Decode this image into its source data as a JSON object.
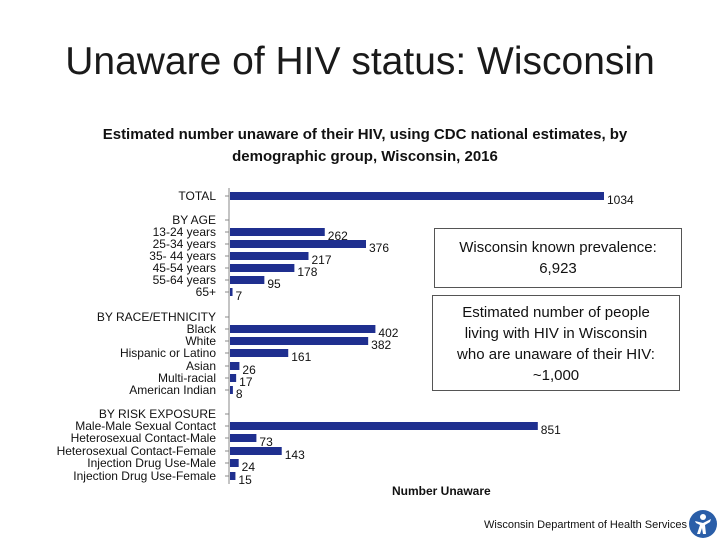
{
  "slide": {
    "title": "Unaware of HIV status: Wisconsin",
    "footer": "Wisconsin Department of Health Services"
  },
  "callouts": {
    "prevalence_line1": "Wisconsin known prevalence:",
    "prevalence_line2": "6,923",
    "unaware_line1": "Estimated number of people",
    "unaware_line2": "living with HIV in Wisconsin",
    "unaware_line3": "who are unaware of their HIV:",
    "unaware_line4": "~1,000"
  },
  "colors": {
    "bar": "#1f2f8f",
    "axis": "#888888"
  },
  "icons": {
    "logo": "person-figure-icon"
  },
  "chart_data": {
    "type": "bar",
    "orientation": "horizontal",
    "title": "Estimated number unaware of their HIV, using CDC national estimates, by demographic group, Wisconsin, 2016",
    "xlabel": "Number Unaware",
    "ylabel": "",
    "xlim": [
      0,
      1100
    ],
    "grid": false,
    "legend": "none",
    "categories": [
      "TOTAL",
      "BY AGE",
      "13-24 years",
      "25-34 years",
      "35- 44 years",
      "45-54 years",
      "55-64 years",
      "65+",
      "BY RACE/ETHNICITY",
      "Black",
      "White",
      "Hispanic or Latino",
      "Asian",
      "Multi-racial",
      "American Indian",
      "BY RISK EXPOSURE",
      "Male-Male Sexual Contact",
      "Heterosexual Contact-Male",
      "Heterosexual Contact-Female",
      "Injection Drug Use-Male",
      "Injection Drug Use-Female"
    ],
    "values": [
      1034,
      null,
      262,
      376,
      217,
      178,
      95,
      7,
      null,
      402,
      382,
      161,
      26,
      17,
      8,
      null,
      851,
      73,
      143,
      24,
      15
    ],
    "value_labels": [
      "1034",
      "",
      "262",
      "376",
      "217",
      "178",
      "95",
      "7",
      "",
      "402",
      "382",
      "161",
      "26",
      "17",
      "8",
      "",
      "851",
      "73",
      "143",
      "24",
      "15"
    ]
  }
}
